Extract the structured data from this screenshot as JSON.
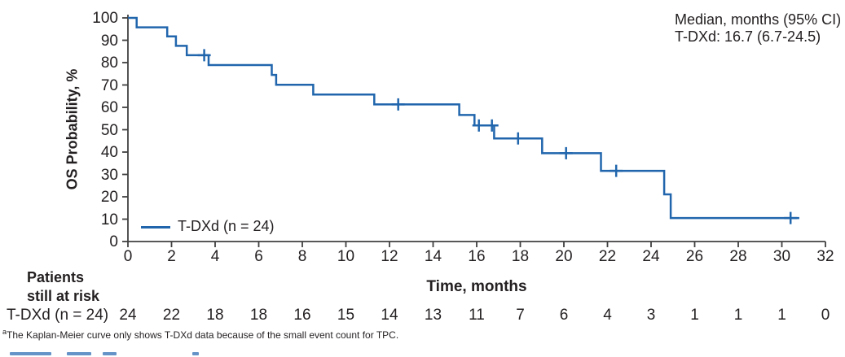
{
  "figure": {
    "annotation": {
      "line1": "Median, months (95% CI)",
      "line2": "T-DXd: 16.7 (6.7-24.5)"
    },
    "y_axis_title": "OS Probability, %",
    "x_axis_title": "Time, months",
    "legend": {
      "label": "T-DXd (n = 24)"
    },
    "risk_table": {
      "header_line1": "Patients",
      "header_line2": "still at risk",
      "row_label": "T-DXd (n = 24)"
    },
    "footnote": {
      "marker": "a",
      "text": "The Kaplan-Meier curve only shows T-DXd data because of the small event count for TPC."
    },
    "colors": {
      "curve_blue": "#2166ad",
      "axis_gray": "#404040",
      "text_black": "#231f20",
      "cropped_text_blue": "#4a80bd"
    }
  },
  "chart_data": {
    "type": "line",
    "subtype": "kaplan-meier-step",
    "title": "",
    "xlabel": "Time, months",
    "ylabel": "OS Probability, %",
    "xlim": [
      0,
      32
    ],
    "ylim": [
      0,
      100
    ],
    "xticks": [
      0,
      2,
      4,
      6,
      8,
      10,
      12,
      14,
      16,
      18,
      20,
      22,
      24,
      26,
      28,
      30,
      32
    ],
    "yticks": [
      0,
      10,
      20,
      30,
      40,
      50,
      60,
      70,
      80,
      90,
      100
    ],
    "grid": false,
    "legend_position": "lower-left-inside",
    "axis_color": "#404040",
    "series": [
      {
        "name": "T-DXd (n = 24)",
        "color": "#2166ad",
        "median_months": 16.7,
        "ci_95": "6.7-24.5",
        "step_points": [
          [
            0,
            100
          ],
          [
            0.4,
            95.8
          ],
          [
            1.8,
            91.7
          ],
          [
            2.2,
            87.5
          ],
          [
            2.7,
            83.3
          ],
          [
            3.7,
            78.9
          ],
          [
            6.6,
            74.5
          ],
          [
            6.8,
            70.1
          ],
          [
            8.5,
            65.7
          ],
          [
            11.3,
            61.3
          ],
          [
            15.2,
            56.6
          ],
          [
            15.9,
            51.9
          ],
          [
            16.8,
            46.1
          ],
          [
            19,
            39.5
          ],
          [
            21.7,
            31.6
          ],
          [
            24.6,
            21.1
          ],
          [
            24.9,
            10.5
          ]
        ],
        "end_time": 30.8,
        "censor_marks": [
          [
            3.5,
            83.3
          ],
          [
            12.4,
            61.3
          ],
          [
            16.1,
            51.9
          ],
          [
            16.7,
            51.9
          ],
          [
            17.9,
            46.1
          ],
          [
            20.1,
            39.5
          ],
          [
            22.4,
            31.6
          ],
          [
            30.4,
            10.5
          ]
        ]
      }
    ],
    "at_risk": {
      "label": "T-DXd (n = 24)",
      "times": [
        0,
        2,
        4,
        6,
        8,
        10,
        12,
        14,
        16,
        18,
        20,
        22,
        24,
        26,
        28,
        30,
        32
      ],
      "counts": [
        24,
        22,
        18,
        18,
        16,
        15,
        14,
        13,
        11,
        7,
        6,
        4,
        3,
        1,
        1,
        1,
        0
      ]
    }
  }
}
